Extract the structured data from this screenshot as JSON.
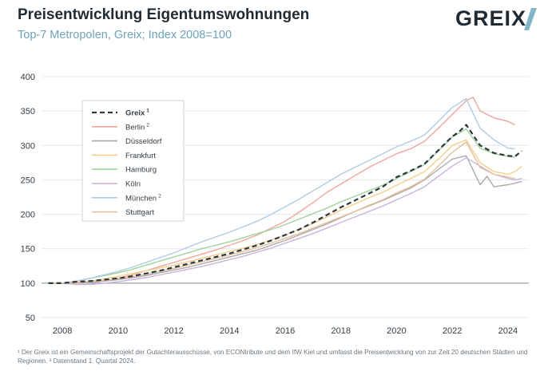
{
  "header": {
    "title": "Preisentwicklung Eigentumswohnungen",
    "subtitle": "Top-7 Metropolen, Greix; Index 2008=100",
    "logo_text": "GREIX"
  },
  "footnote": {
    "text": "¹ Der Greix ist ein Gemeinschaftsprojekt der Gutachterausschüsse, von ECONtribute und dem IfW Kiel und umfasst die Preisentwicklung von zur Zeit 20 deutschen Städten und Regionen. ² Datenstand 1. Quartal 2024."
  },
  "chart_data": {
    "type": "line",
    "title": "Preisentwicklung Eigentumswohnungen",
    "subtitle": "Top-7 Metropolen, Greix; Index 2008=100",
    "xlabel": "",
    "ylabel": "",
    "xlim": [
      2007.25,
      2024.75
    ],
    "ylim": [
      50,
      400
    ],
    "yticks": [
      50,
      100,
      150,
      200,
      250,
      300,
      350,
      400
    ],
    "xticks": [
      2008,
      2010,
      2012,
      2014,
      2016,
      2018,
      2020,
      2022,
      2024
    ],
    "grid": "horizontal",
    "legend_position": "top-left",
    "reference_line": 100,
    "series": [
      {
        "name": "Greix",
        "sup": "1",
        "color": "#2b3a3f",
        "dashed": true,
        "bold": true,
        "x": [
          2007.5,
          2008,
          2008.5,
          2009,
          2009.5,
          2010,
          2010.5,
          2011,
          2011.5,
          2012,
          2012.5,
          2013,
          2013.5,
          2014,
          2014.5,
          2015,
          2015.5,
          2016,
          2016.5,
          2017,
          2017.5,
          2018,
          2018.5,
          2019,
          2019.5,
          2020,
          2020.5,
          2021,
          2021.5,
          2022,
          2022.25,
          2022.5,
          2023,
          2023.5,
          2024,
          2024.25,
          2024.5
        ],
        "y": [
          100,
          100,
          102,
          103,
          105,
          107,
          110,
          114,
          118,
          123,
          128,
          133,
          138,
          143,
          149,
          155,
          162,
          170,
          178,
          188,
          199,
          210,
          220,
          230,
          240,
          254,
          263,
          273,
          293,
          313,
          320,
          330,
          300,
          289,
          285,
          284,
          292
        ]
      },
      {
        "name": "Berlin",
        "sup": "2",
        "color": "#f0a59a",
        "x": [
          2007.5,
          2008,
          2008.5,
          2009,
          2009.5,
          2010,
          2010.5,
          2011,
          2011.5,
          2012,
          2012.5,
          2013,
          2013.5,
          2014,
          2014.5,
          2015,
          2015.5,
          2016,
          2016.5,
          2017,
          2017.5,
          2018,
          2018.5,
          2019,
          2019.5,
          2020,
          2020.5,
          2021,
          2021.5,
          2022,
          2022.5,
          2022.75,
          2023,
          2023.5,
          2024,
          2024.25
        ],
        "y": [
          100,
          100,
          100,
          102,
          103,
          107,
          112,
          118,
          124,
          130,
          136,
          142,
          148,
          155,
          162,
          170,
          180,
          190,
          203,
          217,
          232,
          244,
          256,
          268,
          278,
          288,
          295,
          306,
          325,
          345,
          365,
          370,
          350,
          340,
          335,
          330
        ]
      },
      {
        "name": "Düsseldorf",
        "sup": "",
        "color": "#a9a9a9",
        "x": [
          2007.5,
          2008,
          2008.5,
          2009,
          2009.5,
          2010,
          2010.5,
          2011,
          2011.5,
          2012,
          2012.5,
          2013,
          2013.5,
          2014,
          2014.5,
          2015,
          2015.5,
          2016,
          2016.5,
          2017,
          2017.5,
          2018,
          2018.5,
          2019,
          2019.5,
          2020,
          2020.5,
          2021,
          2021.5,
          2022,
          2022.5,
          2023,
          2023.25,
          2023.5,
          2024,
          2024.25,
          2024.5
        ],
        "y": [
          100,
          100,
          101,
          101,
          103,
          105,
          108,
          111,
          115,
          119,
          123,
          128,
          133,
          138,
          143,
          148,
          155,
          162,
          170,
          178,
          186,
          195,
          204,
          212,
          220,
          229,
          238,
          250,
          265,
          280,
          285,
          243,
          255,
          240,
          243,
          245,
          248
        ]
      },
      {
        "name": "Frankfurt",
        "sup": "",
        "color": "#f5cf8a",
        "x": [
          2007.5,
          2008,
          2008.5,
          2009,
          2009.5,
          2010,
          2010.5,
          2011,
          2011.5,
          2012,
          2012.5,
          2013,
          2013.5,
          2014,
          2014.5,
          2015,
          2015.5,
          2016,
          2016.5,
          2017,
          2017.5,
          2018,
          2018.5,
          2019,
          2019.5,
          2020,
          2020.5,
          2021,
          2021.5,
          2022,
          2022.5,
          2023,
          2023.5,
          2024,
          2024.25,
          2024.5
        ],
        "y": [
          100,
          100,
          101,
          103,
          106,
          110,
          114,
          118,
          122,
          126,
          131,
          136,
          141,
          146,
          151,
          156,
          163,
          170,
          178,
          187,
          196,
          206,
          215,
          224,
          232,
          242,
          252,
          262,
          280,
          300,
          308,
          275,
          262,
          258,
          262,
          270
        ]
      },
      {
        "name": "Hamburg",
        "sup": "",
        "color": "#9fd39a",
        "x": [
          2007.5,
          2008,
          2008.5,
          2009,
          2009.5,
          2010,
          2010.5,
          2011,
          2011.5,
          2012,
          2012.5,
          2013,
          2013.5,
          2014,
          2014.5,
          2015,
          2015.5,
          2016,
          2016.5,
          2017,
          2017.5,
          2018,
          2018.5,
          2019,
          2019.5,
          2020,
          2020.5,
          2021,
          2021.5,
          2022,
          2022.5,
          2023,
          2023.5,
          2024,
          2024.25
        ],
        "y": [
          100,
          100,
          103,
          107,
          111,
          115,
          120,
          126,
          132,
          138,
          144,
          150,
          155,
          160,
          166,
          172,
          178,
          185,
          193,
          201,
          209,
          218,
          226,
          234,
          242,
          252,
          262,
          272,
          292,
          312,
          324,
          296,
          288,
          284,
          283
        ]
      },
      {
        "name": "Köln",
        "sup": "",
        "color": "#c9b3dc",
        "x": [
          2007.5,
          2008,
          2008.5,
          2009,
          2009.5,
          2010,
          2010.5,
          2011,
          2011.5,
          2012,
          2012.5,
          2013,
          2013.5,
          2014,
          2014.5,
          2015,
          2015.5,
          2016,
          2016.5,
          2017,
          2017.5,
          2018,
          2018.5,
          2019,
          2019.5,
          2020,
          2020.5,
          2021,
          2021.5,
          2022,
          2022.5,
          2023,
          2023.5,
          2024,
          2024.25,
          2024.5
        ],
        "y": [
          100,
          100,
          98,
          98,
          100,
          102,
          105,
          108,
          112,
          116,
          120,
          124,
          129,
          134,
          139,
          145,
          151,
          158,
          165,
          172,
          180,
          188,
          196,
          204,
          212,
          221,
          230,
          240,
          255,
          270,
          282,
          270,
          258,
          252,
          250,
          252
        ]
      },
      {
        "name": "München",
        "sup": "2",
        "color": "#aecbe6",
        "x": [
          2007.5,
          2008,
          2008.5,
          2009,
          2009.5,
          2010,
          2010.5,
          2011,
          2011.5,
          2012,
          2012.5,
          2013,
          2013.5,
          2014,
          2014.5,
          2015,
          2015.5,
          2016,
          2016.5,
          2017,
          2017.5,
          2018,
          2018.5,
          2019,
          2019.5,
          2020,
          2020.5,
          2021,
          2021.5,
          2022,
          2022.5,
          2023,
          2023.5,
          2024,
          2024.25
        ],
        "y": [
          100,
          100,
          103,
          107,
          112,
          117,
          123,
          130,
          137,
          144,
          152,
          160,
          167,
          174,
          182,
          190,
          200,
          211,
          222,
          234,
          246,
          258,
          268,
          278,
          288,
          298,
          306,
          315,
          335,
          355,
          368,
          325,
          308,
          296,
          295
        ]
      },
      {
        "name": "Stuttgart",
        "sup": "",
        "color": "#e5bf9c",
        "x": [
          2007.5,
          2008,
          2008.5,
          2009,
          2009.5,
          2010,
          2010.5,
          2011,
          2011.5,
          2012,
          2012.5,
          2013,
          2013.5,
          2014,
          2014.5,
          2015,
          2015.5,
          2016,
          2016.5,
          2017,
          2017.5,
          2018,
          2018.5,
          2019,
          2019.5,
          2020,
          2020.5,
          2021,
          2021.5,
          2022,
          2022.5,
          2023,
          2023.5,
          2024,
          2024.25
        ],
        "y": [
          100,
          100,
          101,
          102,
          104,
          106,
          109,
          113,
          117,
          121,
          126,
          131,
          136,
          141,
          146,
          152,
          158,
          165,
          172,
          180,
          188,
          196,
          204,
          213,
          221,
          231,
          240,
          251,
          270,
          290,
          305,
          268,
          258,
          254,
          252
        ]
      }
    ]
  }
}
